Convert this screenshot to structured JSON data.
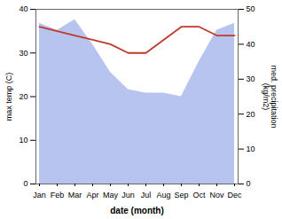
{
  "chart_data": {
    "type": "line",
    "categories": [
      "Jan",
      "Feb",
      "Mar",
      "Apr",
      "May",
      "Jun",
      "Jul",
      "Aug",
      "Sep",
      "Oct",
      "Nov",
      "Dec"
    ],
    "xlabel": "date (month)",
    "ylabel": "max temp (C)",
    "y2label": "med. precipitation\n(kg/m2)",
    "series": [
      {
        "type": "area",
        "axis": "y2",
        "color": "#b8c4f0",
        "values": [
          46,
          44,
          47,
          40,
          32,
          27,
          26,
          26,
          25,
          35,
          44,
          46
        ]
      },
      {
        "type": "line",
        "color": "#c0392b",
        "values": [
          36,
          35,
          34,
          33,
          32,
          30,
          30,
          33,
          36,
          36,
          34,
          34
        ]
      }
    ],
    "ylim": [
      0,
      40
    ],
    "yticks": [
      0,
      10,
      20,
      30,
      40
    ],
    "y2lim": [
      0,
      50
    ],
    "y2ticks": [
      0,
      10,
      20,
      30,
      40,
      50
    ]
  }
}
